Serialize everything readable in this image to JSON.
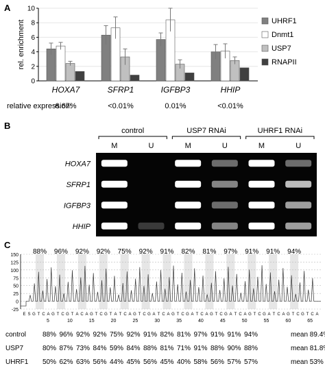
{
  "figure": {
    "panels": [
      "A",
      "B",
      "C"
    ]
  },
  "chart_data": {
    "type": "bar",
    "categories": [
      "HOXA7",
      "SFRP1",
      "IGFBP3",
      "HHIP"
    ],
    "ylabel": "rel. enrichment",
    "ylim": [
      0,
      10
    ],
    "yticks": [
      "0",
      "2",
      "4",
      "6",
      "8",
      "10"
    ],
    "legend_position": "right",
    "series": [
      {
        "name": "UHRF1",
        "color": "#808080",
        "values": [
          4.4,
          6.3,
          5.7,
          4.0
        ],
        "errors": [
          0.8,
          1.3,
          0.9,
          1.0
        ]
      },
      {
        "name": "Dnmt1",
        "color": "#ffffff",
        "values": [
          4.8,
          7.3,
          8.4,
          4.1
        ],
        "errors": [
          0.5,
          1.5,
          1.6,
          1.0
        ]
      },
      {
        "name": "USP7",
        "color": "#c0c0c0",
        "values": [
          2.4,
          3.3,
          2.3,
          2.8
        ],
        "errors": [
          0.3,
          1.1,
          0.6,
          0.5
        ]
      },
      {
        "name": "RNAPII",
        "color": "#404040",
        "values": [
          1.3,
          0.8,
          1.1,
          1.8
        ],
        "errors": [
          0.0,
          0.0,
          0.0,
          0.0
        ]
      }
    ],
    "expression_label": "relative expression:",
    "expression_values": [
      "6.67%",
      "<0.01%",
      "0.01%",
      "<0.01%"
    ]
  },
  "gel": {
    "groups": [
      "control",
      "USP7 RNAi",
      "UHRF1 RNAi"
    ],
    "lane_labels": [
      "M",
      "U",
      "M",
      "U",
      "M",
      "U"
    ],
    "genes": [
      "HOXA7",
      "SFRP1",
      "IGFBP3",
      "HHIP"
    ],
    "band_intensity": [
      [
        1.0,
        0.0,
        1.0,
        0.5,
        1.0,
        0.5
      ],
      [
        1.0,
        0.0,
        1.0,
        0.6,
        1.0,
        0.8
      ],
      [
        1.0,
        0.0,
        1.0,
        0.5,
        1.0,
        0.7
      ],
      [
        1.0,
        0.25,
        1.0,
        0.6,
        1.0,
        0.7
      ]
    ]
  },
  "sequencing": {
    "yticks": [
      "150",
      "125",
      "100",
      "75",
      "50",
      "25",
      "0",
      "-25"
    ],
    "top_percentages": [
      "88%",
      "96%",
      "92%",
      "92%",
      "75%",
      "92%",
      "91%",
      "82%",
      "81%",
      "97%",
      "91%",
      "91%",
      "94%"
    ],
    "sequence": "ESGTCAGTCGTACAGTCGTATCAGTCGATCAGTCGATCAGTCGATCAGTCGATCAGTCGTCA",
    "positions": [
      "5",
      "10",
      "15",
      "20",
      "25",
      "30",
      "35",
      "40",
      "45",
      "50",
      "55",
      "60",
      "65"
    ],
    "rows": [
      {
        "label": "control",
        "values": [
          "88%",
          "96%",
          "92%",
          "92%",
          "75%",
          "92%",
          "91%",
          "82%",
          "81%",
          "97%",
          "91%",
          "91%",
          "94%"
        ],
        "mean": "mean 89.4%"
      },
      {
        "label": "USP7",
        "values": [
          "80%",
          "87%",
          "73%",
          "84%",
          "59%",
          "84%",
          "88%",
          "81%",
          "71%",
          "91%",
          "88%",
          "90%",
          "88%"
        ],
        "mean": "mean 81.8%"
      },
      {
        "label": "UHRF1",
        "values": [
          "50%",
          "62%",
          "63%",
          "56%",
          "44%",
          "45%",
          "56%",
          "45%",
          "40%",
          "58%",
          "56%",
          "57%",
          "57%"
        ],
        "mean": "mean 53%"
      }
    ]
  }
}
